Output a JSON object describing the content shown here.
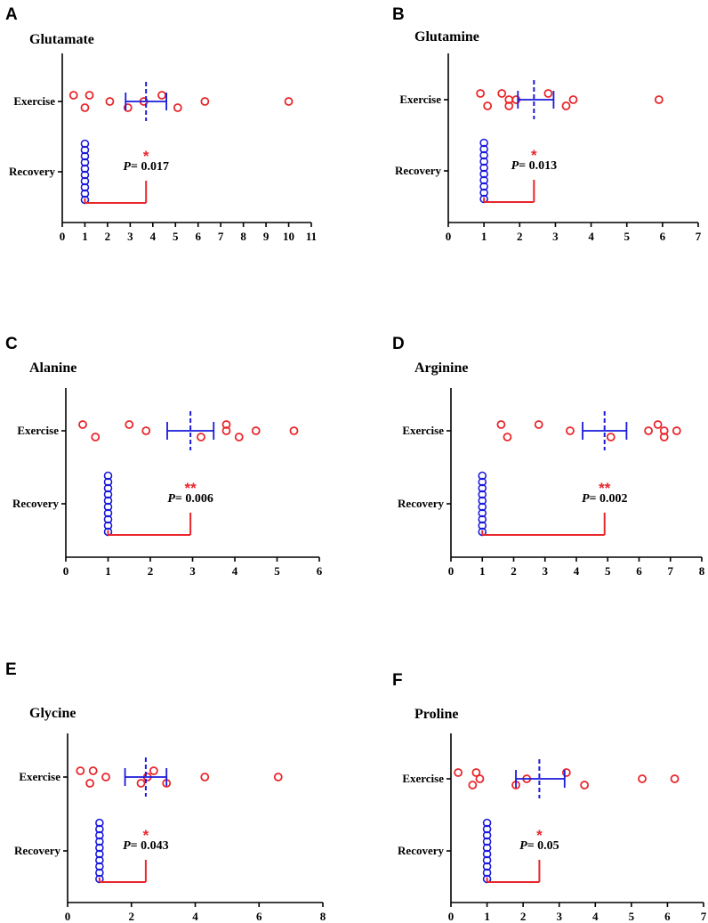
{
  "colors": {
    "exercise": "#e8262b",
    "recovery": "#1a1adb",
    "mean": "#1a1adb",
    "bracket": "#e8262b",
    "axis": "#000000"
  },
  "chart_data": [
    {
      "panel": "A",
      "title": "Glutamate",
      "type": "scatter",
      "categories": [
        "Exercise",
        "Recovery"
      ],
      "xlim": [
        0,
        11
      ],
      "xticks": [
        0,
        1,
        2,
        3,
        4,
        5,
        6,
        7,
        8,
        9,
        10,
        11
      ],
      "exercise": [
        0.5,
        1.0,
        1.2,
        2.1,
        2.9,
        3.6,
        4.4,
        5.1,
        6.3,
        10.0
      ],
      "exercise_mean": 3.7,
      "exercise_sd": [
        2.8,
        4.6
      ],
      "recovery": [
        1,
        1,
        1,
        1,
        1,
        1,
        1,
        1,
        1,
        1
      ],
      "significance": "*",
      "p_label": "P",
      "p_value": "= 0.017"
    },
    {
      "panel": "B",
      "title": "Glutamine",
      "type": "scatter",
      "categories": [
        "Exercise",
        "Recovery"
      ],
      "xlim": [
        0,
        7
      ],
      "xticks": [
        0,
        1,
        2,
        3,
        4,
        5,
        6,
        7
      ],
      "exercise": [
        0.9,
        1.1,
        1.5,
        1.7,
        1.7,
        1.9,
        2.8,
        3.3,
        3.5,
        5.9
      ],
      "exercise_mean": 2.4,
      "exercise_sd": [
        1.95,
        2.95
      ],
      "recovery": [
        1,
        1,
        1,
        1,
        1,
        1,
        1,
        1,
        1,
        1
      ],
      "significance": "*",
      "p_label": "P",
      "p_value": "= 0.013"
    },
    {
      "panel": "C",
      "title": "Alanine",
      "type": "scatter",
      "categories": [
        "Exercise",
        "Recovery"
      ],
      "xlim": [
        0,
        6
      ],
      "xticks": [
        0,
        1,
        2,
        3,
        4,
        5,
        6
      ],
      "exercise": [
        0.4,
        0.7,
        1.5,
        1.9,
        3.2,
        3.8,
        3.8,
        4.1,
        4.5,
        5.4
      ],
      "exercise_mean": 2.95,
      "exercise_sd": [
        2.4,
        3.5
      ],
      "recovery": [
        1,
        1,
        1,
        1,
        1,
        1,
        1,
        1,
        1,
        1
      ],
      "significance": "**",
      "p_label": "P",
      "p_value": "= 0.006"
    },
    {
      "panel": "D",
      "title": "Arginine",
      "type": "scatter",
      "categories": [
        "Exercise",
        "Recovery"
      ],
      "xlim": [
        0,
        8
      ],
      "xticks": [
        0,
        1,
        2,
        3,
        4,
        5,
        6,
        7,
        8
      ],
      "exercise": [
        1.6,
        1.8,
        2.8,
        3.8,
        5.1,
        6.3,
        6.6,
        6.8,
        6.8,
        7.2
      ],
      "exercise_mean": 4.9,
      "exercise_sd": [
        4.2,
        5.6
      ],
      "recovery": [
        1,
        1,
        1,
        1,
        1,
        1,
        1,
        1,
        1,
        1
      ],
      "significance": "**",
      "p_label": "P",
      "p_value": "= 0.002"
    },
    {
      "panel": "E",
      "title": "Glycine",
      "type": "scatter",
      "categories": [
        "Exercise",
        "Recovery"
      ],
      "xlim": [
        0,
        8
      ],
      "xticks": [
        0,
        2,
        4,
        6,
        8
      ],
      "exercise": [
        0.4,
        0.7,
        0.8,
        1.2,
        2.3,
        2.5,
        2.7,
        3.1,
        4.3,
        6.6
      ],
      "exercise_mean": 2.45,
      "exercise_sd": [
        1.8,
        3.1
      ],
      "recovery": [
        1,
        1,
        1,
        1,
        1,
        1,
        1,
        1,
        1,
        1
      ],
      "significance": "*",
      "p_label": "P",
      "p_value": "= 0.043"
    },
    {
      "panel": "F",
      "title": "Proline",
      "type": "scatter",
      "categories": [
        "Exercise",
        "Recovery"
      ],
      "xlim": [
        0,
        7
      ],
      "xticks": [
        0,
        1,
        2,
        3,
        4,
        5,
        6,
        7
      ],
      "exercise": [
        0.2,
        0.6,
        0.7,
        0.8,
        1.8,
        2.1,
        3.2,
        3.7,
        5.3,
        6.2
      ],
      "exercise_mean": 2.45,
      "exercise_sd": [
        1.8,
        3.15
      ],
      "recovery": [
        1,
        1,
        1,
        1,
        1,
        1,
        1,
        1,
        1,
        1
      ],
      "significance": "*",
      "p_label": "P",
      "p_value": "= 0.05"
    }
  ]
}
